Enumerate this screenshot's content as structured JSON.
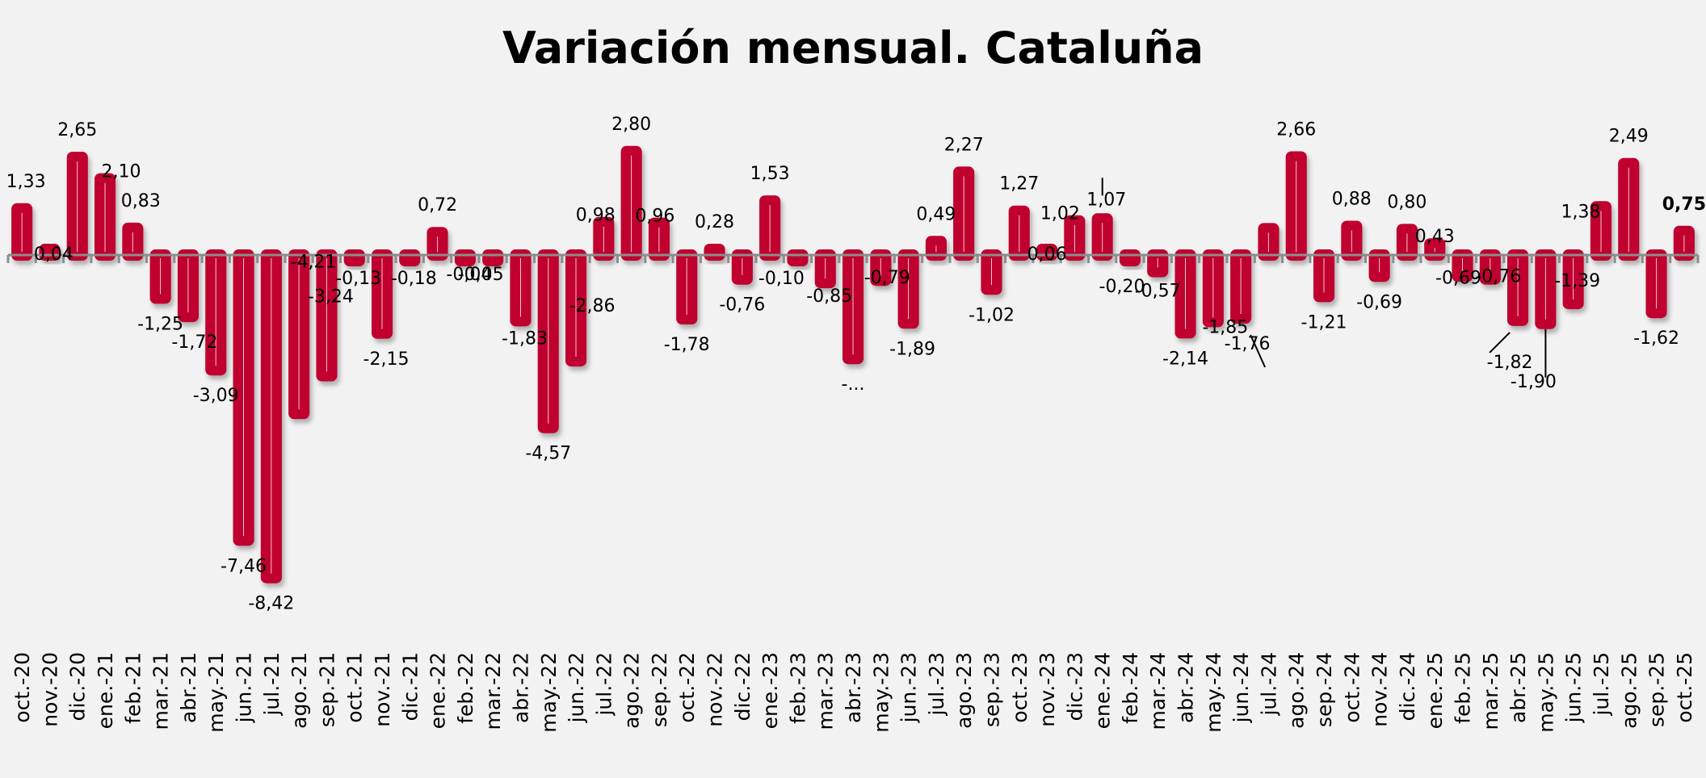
{
  "chart_data": {
    "type": "bar",
    "title": "Variación mensual. Cataluña",
    "xlabel": "",
    "ylabel": "",
    "ylim": [
      -8.8,
      3.2
    ],
    "grid": false,
    "legend": "none",
    "bar_color": "#c0002d",
    "axis_color": "#8c8c8c",
    "categories": [
      "oct.-20",
      "nov.-20",
      "dic.-20",
      "ene.-21",
      "feb.-21",
      "mar.-21",
      "abr.-21",
      "may.-21",
      "jun.-21",
      "jul.-21",
      "ago.-21",
      "sep.-21",
      "oct.-21",
      "nov.-21",
      "dic.-21",
      "ene.-22",
      "feb.-22",
      "mar.-22",
      "abr.-22",
      "may.-22",
      "jun.-22",
      "jul.-22",
      "ago.-22",
      "sep.-22",
      "oct.-22",
      "nov.-22",
      "dic.-22",
      "ene.-23",
      "feb.-23",
      "mar.-23",
      "abr.-23",
      "may.-23",
      "jun.-23",
      "jul.-23",
      "ago.-23",
      "sep.-23",
      "oct.-23",
      "nov.-23",
      "dic.-23",
      "ene.-24",
      "feb.-24",
      "mar.-24",
      "abr.-24",
      "may.-24",
      "jun.-24",
      "jul.-24",
      "ago.-24",
      "sep.-24",
      "oct.-24",
      "nov.-24",
      "dic.-24",
      "ene.-25",
      "feb.-25",
      "mar.-25",
      "abr.-25",
      "may.-25",
      "jun.-25",
      "jul.-25",
      "ago.-25",
      "sep.-25",
      "oct.-25"
    ],
    "values": [
      1.33,
      0.04,
      2.65,
      2.1,
      0.83,
      -1.25,
      -1.72,
      -3.09,
      -7.46,
      -8.42,
      -4.21,
      -3.24,
      -0.13,
      -2.15,
      -0.18,
      0.72,
      -0.04,
      -0.05,
      -1.83,
      -4.57,
      -2.86,
      0.98,
      2.8,
      0.96,
      -1.78,
      0.28,
      -0.76,
      1.53,
      -0.1,
      -0.85,
      -2.8,
      -0.79,
      -1.89,
      0.49,
      2.27,
      -1.02,
      1.27,
      0.06,
      1.02,
      1.07,
      -0.2,
      -0.57,
      -2.14,
      -1.85,
      -1.76,
      0.82,
      2.66,
      -1.21,
      0.88,
      -0.69,
      0.8,
      0.43,
      -0.69,
      -0.76,
      -1.82,
      -1.9,
      -1.39,
      1.38,
      2.49,
      -1.62,
      0.75
    ],
    "data_labels": [
      "1,33",
      "0,04",
      "2,65",
      "2,10",
      "0,83",
      "-1,25",
      "-1,72",
      "-3,09",
      "-7,46",
      "-8,42",
      "-4,21",
      "-3,24",
      "-0,13",
      "-2,15",
      "-0,18",
      "0,72",
      "-0,04",
      "-0,05",
      "-1,83",
      "-4,57",
      "-2,86",
      "0,98",
      "2,80",
      "0,96",
      "-1,78",
      "0,28",
      "-0,76",
      "1,53",
      "-0,10",
      "-0,85",
      "-...",
      "-0,79",
      "-1,89",
      "0,49",
      "2,27",
      "-1,02",
      "1,27",
      "0,06",
      "1,02",
      "1,07",
      "-0,20",
      "-0,57",
      "-2,14",
      "-1,85",
      "-1,76",
      "",
      "2,66",
      "-1,21",
      "0,88",
      "-0,69",
      "0,80",
      "0,43",
      "-0,69",
      "-0,76",
      "-1,82",
      "-1,90",
      "-1,39",
      "1,38",
      "2,49",
      "-1,62",
      "0,75"
    ],
    "highlighted_label_index": 60
  }
}
